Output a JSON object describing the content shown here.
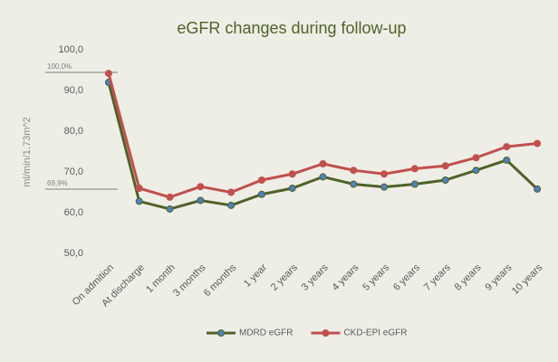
{
  "chart_data": {
    "type": "line",
    "title": "eGFR changes during follow-up",
    "y_label": "ml/min/1.73m^2",
    "categories": [
      "On admition",
      "At discharge",
      "1 month",
      "3 months",
      "6 months",
      "1 year",
      "2 years",
      "3 years",
      "4 years",
      "5 years",
      "6 years",
      "7 years",
      "8 years",
      "9 years",
      "10 years"
    ],
    "series": [
      {
        "name": "MDRD eGFR",
        "color": "#4f6228",
        "marker_color": "#4f81bd",
        "values": [
          92,
          62.8,
          60.9,
          63,
          61.8,
          64.5,
          66,
          68.8,
          67,
          66.3,
          67,
          68,
          70.4,
          72.9,
          65.8
        ]
      },
      {
        "name": "CKD-EPI eGFR",
        "color": "#c0504d",
        "marker_color": "#c0504d",
        "values": [
          94.2,
          66,
          63.8,
          66.4,
          65,
          68,
          69.5,
          72,
          70.4,
          69.5,
          70.8,
          71.5,
          73.5,
          76.2,
          77
        ]
      }
    ],
    "annotations": [
      "100,0%",
      "69,9%"
    ],
    "ylim": [
      50,
      100
    ],
    "yticks": [
      {
        "value": 50,
        "label": "50,0"
      },
      {
        "value": 60,
        "label": "60,0"
      },
      {
        "value": 70,
        "label": "70,0"
      },
      {
        "value": 80,
        "label": "80,0"
      },
      {
        "value": 90,
        "label": "90,0"
      },
      {
        "value": 100,
        "label": "100,0"
      }
    ],
    "grid": false,
    "legend": "bottom"
  }
}
